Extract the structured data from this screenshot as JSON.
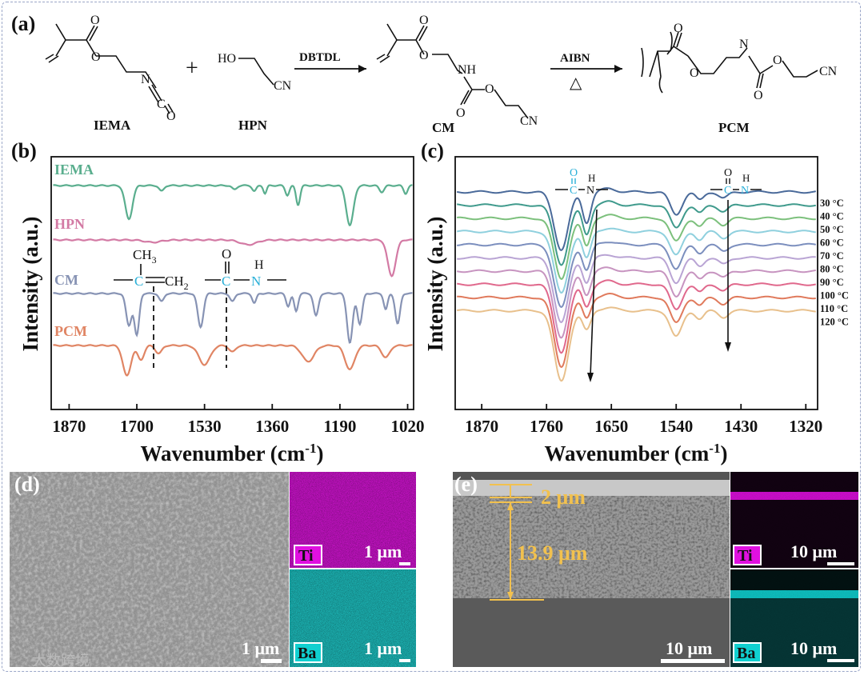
{
  "panels": {
    "a": {
      "label": "(a)",
      "compounds": [
        "IEMA",
        "HPN",
        "CM",
        "PCM"
      ],
      "plus": "+",
      "reagent1": "DBTDL",
      "reagent2": "AIBN",
      "heat": "△",
      "atoms": {
        "o": "O",
        "n": "N",
        "c": "C",
        "ho": "HO",
        "cn": "CN",
        "nh": "NH"
      }
    },
    "b": {
      "label": "(b)",
      "ylabel": "Intensity (a.u.)",
      "xlabel_main": "Wavenumber (cm",
      "xlabel_sup": "-1",
      "xlabel_end": ")",
      "group1": {
        "ch3": "CH",
        "ch3sub": "3",
        "c": "C",
        "ch2": "CH",
        "ch2sub": "2"
      },
      "group2": {
        "o": "O",
        "c": "C",
        "h": "H",
        "n": "N"
      }
    },
    "c": {
      "label": "(c)",
      "ylabel": "Intensity (a.u.)",
      "group": {
        "o": "O",
        "c": "C",
        "h": "H",
        "n": "N"
      }
    },
    "d": {
      "label": "(d)",
      "sem_scale": "1 μm",
      "ti": "Ti",
      "ti_scale": "1 μm",
      "ba": "Ba",
      "ba_scale": "1 μm"
    },
    "e": {
      "label": "(e)",
      "thin": "2 μm",
      "thick": "13.9 μm",
      "sem_scale": "10 μm",
      "ti": "Ti",
      "ti_scale": "10 μm",
      "ba": "Ba",
      "ba_scale": "10 μm"
    }
  },
  "watermark": "大数跨境",
  "colors": {
    "IEMA": "#5aae8e",
    "HPN": "#d37aa4",
    "CM": "#8793b4",
    "PCM": "#e08564",
    "cyan": "#2ab0d8",
    "yellow": "#f2c14e",
    "magenta": "#e010e0",
    "teal": "#10d0d0"
  },
  "chart_data": [
    {
      "type": "line",
      "title": "",
      "xlabel": "Wavenumber (cm-1)",
      "ylabel": "Intensity (a.u.)",
      "xlim": [
        1915,
        1005
      ],
      "x_ticks": [
        1870,
        1700,
        1530,
        1360,
        1190,
        1020
      ],
      "x_tick_labels": [
        "1870",
        "1700",
        "1530",
        "1360",
        "1190",
        "1020"
      ],
      "series": [
        {
          "name": "IEMA",
          "color": "#5aae8e",
          "offset": 0,
          "bands": [
            [
              1720,
              -42,
              9
            ],
            [
              1638,
              -7,
              6
            ],
            [
              1455,
              -5,
              6
            ],
            [
              1405,
              -7,
              5
            ],
            [
              1378,
              -10,
              4
            ],
            [
              1322,
              -12,
              5
            ],
            [
              1295,
              -24,
              5
            ],
            [
              1165,
              -50,
              9
            ],
            [
              1085,
              -8,
              6
            ],
            [
              1025,
              -10,
              5
            ]
          ]
        },
        {
          "name": "HPN",
          "color": "#d37aa4",
          "offset": 68,
          "bands": [
            [
              1660,
              -3,
              20
            ],
            [
              1420,
              -6,
              20
            ],
            [
              1060,
              -45,
              10
            ]
          ]
        },
        {
          "name": "CM",
          "color": "#8793b4",
          "offset": 135,
          "bands": [
            [
              1720,
              -40,
              7
            ],
            [
              1700,
              -52,
              6
            ],
            [
              1638,
              -10,
              6
            ],
            [
              1540,
              -42,
              7
            ],
            [
              1460,
              -10,
              6
            ],
            [
              1405,
              -12,
              5
            ],
            [
              1320,
              -16,
              5
            ],
            [
              1300,
              -22,
              5
            ],
            [
              1250,
              -28,
              6
            ],
            [
              1165,
              -62,
              7
            ],
            [
              1140,
              -38,
              6
            ],
            [
              1075,
              -20,
              5
            ],
            [
              1045,
              -38,
              6
            ]
          ]
        },
        {
          "name": "PCM",
          "color": "#e08564",
          "offset": 200,
          "bands": [
            [
              1725,
              -38,
              10
            ],
            [
              1690,
              -18,
              8
            ],
            [
              1645,
              -10,
              8
            ],
            [
              1530,
              -24,
              14
            ],
            [
              1460,
              -8,
              8
            ],
            [
              1270,
              -20,
              15
            ],
            [
              1165,
              -30,
              12
            ],
            [
              1075,
              -15,
              10
            ]
          ]
        }
      ]
    },
    {
      "type": "line",
      "title": "",
      "xlabel": "Wavenumber (cm-1)",
      "ylabel": "Intensity (a.u.)",
      "xlim": [
        1915,
        1300
      ],
      "x_ticks": [
        1870,
        1760,
        1650,
        1540,
        1430,
        1320
      ],
      "x_tick_labels": [
        "1870",
        "1760",
        "1650",
        "1540",
        "1430",
        "1320"
      ],
      "series": [
        {
          "name": "30 °C",
          "color": "#4a6a9a"
        },
        {
          "name": "40 °C",
          "color": "#3f9a8c"
        },
        {
          "name": "50 °C",
          "color": "#7cc07c"
        },
        {
          "name": "60 °C",
          "color": "#8fd0de"
        },
        {
          "name": "70 °C",
          "color": "#7c8fbe"
        },
        {
          "name": "80 °C",
          "color": "#b9a4d4"
        },
        {
          "name": "90 °C",
          "color": "#c794c0"
        },
        {
          "name": "100 °C",
          "color": "#e0688c"
        },
        {
          "name": "110 °C",
          "color": "#e07a5c"
        },
        {
          "name": "120 °C",
          "color": "#e8c08c"
        }
      ]
    }
  ]
}
